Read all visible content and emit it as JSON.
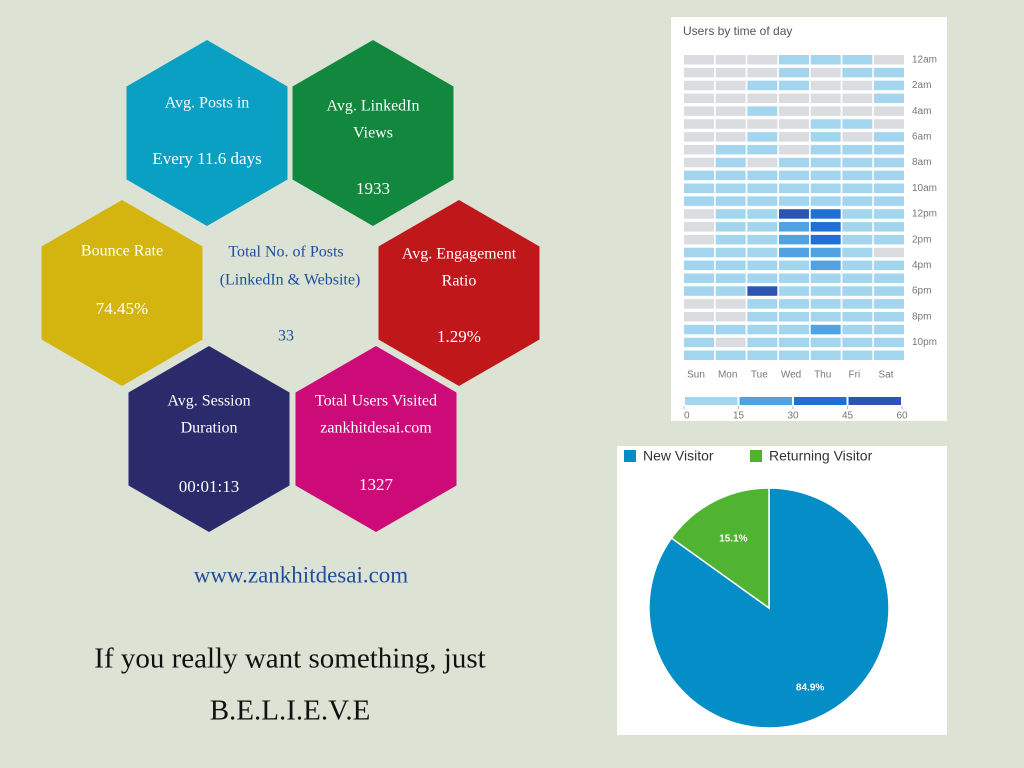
{
  "hexagons": [
    {
      "label": [
        "Avg. Posts in"
      ],
      "value": "Every 11.6 days",
      "color": "#0aa0c4"
    },
    {
      "label": [
        "Avg. LinkedIn",
        "Views"
      ],
      "value": "1933",
      "color": "#12873e"
    },
    {
      "label": [
        "Bounce Rate"
      ],
      "value": "74.45%",
      "color": "#d4b40f"
    },
    {
      "label": [
        "Avg. Engagement",
        "Ratio"
      ],
      "value": "1.29%",
      "color": "#c0171b"
    },
    {
      "label": [
        "Avg. Session",
        "Duration"
      ],
      "value": "00:01:13",
      "color": "#2b2a6b"
    },
    {
      "label": [
        "Total Users Visited",
        "zankhitdesai.com"
      ],
      "value": "1327",
      "color": "#cc0b78"
    }
  ],
  "center": {
    "label": [
      "Total No. of Posts",
      "(LinkedIn & Website)"
    ],
    "value": "33"
  },
  "website": "www.zankhitdesai.com",
  "quote": [
    "If you really want something, just",
    "B.E.L.I.E.V.E"
  ],
  "chart_data": [
    {
      "type": "heatmap",
      "title": "Users by time of day",
      "x_categories": [
        "Sun",
        "Mon",
        "Tue",
        "Wed",
        "Thu",
        "Fri",
        "Sat"
      ],
      "y_categories": [
        "12am",
        null,
        "2am",
        null,
        "4am",
        null,
        "6am",
        null,
        "8am",
        null,
        "10am",
        null,
        "12pm",
        null,
        "2pm",
        null,
        "4pm",
        null,
        "6pm",
        null,
        "8pm",
        null,
        "10pm",
        null
      ],
      "values": [
        [
          0,
          0,
          0,
          8,
          8,
          8,
          0
        ],
        [
          0,
          0,
          0,
          8,
          0,
          8,
          8
        ],
        [
          0,
          0,
          8,
          8,
          0,
          0,
          8
        ],
        [
          0,
          0,
          0,
          0,
          0,
          0,
          8
        ],
        [
          0,
          0,
          8,
          0,
          0,
          0,
          0
        ],
        [
          0,
          0,
          0,
          0,
          8,
          8,
          0
        ],
        [
          0,
          0,
          8,
          0,
          8,
          0,
          8
        ],
        [
          0,
          8,
          8,
          0,
          8,
          8,
          8
        ],
        [
          0,
          8,
          0,
          8,
          8,
          8,
          8
        ],
        [
          8,
          8,
          8,
          8,
          8,
          8,
          8
        ],
        [
          8,
          8,
          8,
          8,
          8,
          8,
          8
        ],
        [
          8,
          8,
          8,
          8,
          8,
          8,
          8
        ],
        [
          0,
          8,
          8,
          48,
          40,
          8,
          8
        ],
        [
          0,
          8,
          8,
          22,
          40,
          8,
          8
        ],
        [
          0,
          8,
          8,
          22,
          38,
          8,
          8
        ],
        [
          8,
          8,
          8,
          22,
          22,
          8,
          0
        ],
        [
          8,
          8,
          8,
          8,
          22,
          8,
          8
        ],
        [
          8,
          8,
          8,
          8,
          8,
          8,
          8
        ],
        [
          8,
          8,
          50,
          8,
          8,
          8,
          8
        ],
        [
          0,
          0,
          8,
          8,
          8,
          8,
          8
        ],
        [
          0,
          0,
          8,
          8,
          8,
          8,
          8
        ],
        [
          8,
          8,
          8,
          8,
          22,
          8,
          8
        ],
        [
          8,
          0,
          8,
          8,
          8,
          8,
          8
        ],
        [
          8,
          8,
          8,
          8,
          8,
          8,
          8
        ]
      ],
      "empty_color": "#dadce0",
      "colorbar": {
        "ticks": [
          0,
          15,
          30,
          45,
          60
        ],
        "colors": [
          "#a3d5ee",
          "#4fa3e3",
          "#1f6fd6",
          "#2c55b3"
        ]
      }
    },
    {
      "type": "pie",
      "categories": [
        "New Visitor",
        "Returning Visitor"
      ],
      "values": [
        84.9,
        15.1
      ],
      "value_labels": [
        "84.9%",
        "15.1%"
      ],
      "colors": [
        "#058dc7",
        "#50b432"
      ],
      "legend": "top"
    }
  ]
}
